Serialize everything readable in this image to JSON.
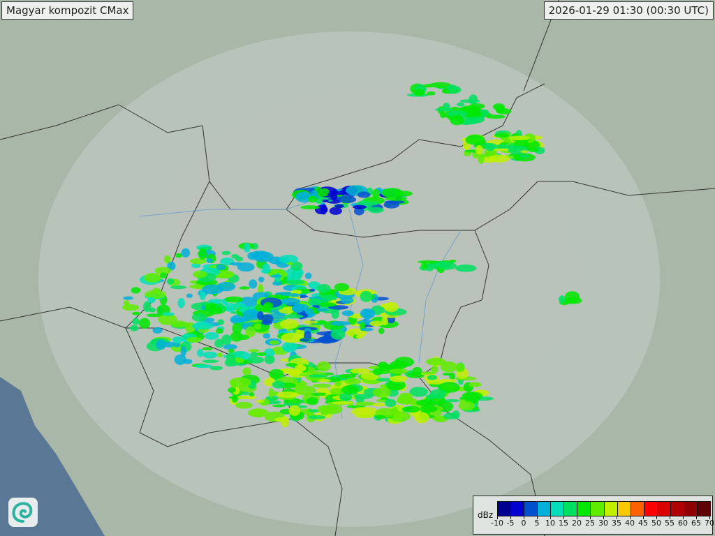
{
  "title": "Magyar kompozit  CMax",
  "timestamp": "2026-01-29 01:30 (00:30 UTC)",
  "logo": {
    "icon": "swirl-logo-icon"
  },
  "legend": {
    "unit": "dBz",
    "ticks": [
      "-10",
      "-5",
      "0",
      "5",
      "10",
      "15",
      "20",
      "25",
      "30",
      "35",
      "40",
      "45",
      "50",
      "55",
      "60",
      "65",
      "70"
    ],
    "colors": [
      "#000090",
      "#0000d0",
      "#0050d0",
      "#00b0d8",
      "#00e0b8",
      "#00e060",
      "#00e800",
      "#60ec00",
      "#c0f000",
      "#f8c800",
      "#ff6000",
      "#ff0000",
      "#d80000",
      "#b00000",
      "#900000",
      "#600000"
    ]
  },
  "map_colors": {
    "land": "#a9b7a8",
    "sea": "#5a7895",
    "radar_coverage": "#c7d0c8",
    "borders": "#333333",
    "rivers": "#6a9ad0"
  }
}
